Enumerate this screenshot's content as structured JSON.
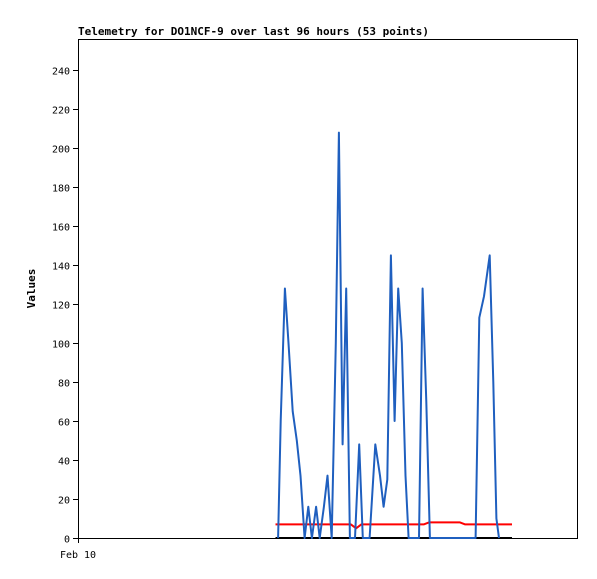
{
  "chart_data": {
    "type": "line",
    "title": "Telemetry for DO1NCF-9 over last 96 hours (53 points)",
    "ylabel": "Values",
    "xlabel": "",
    "x_tick_labels": [
      "Feb 10"
    ],
    "y_ticks": [
      0,
      20,
      40,
      60,
      80,
      100,
      120,
      140,
      160,
      180,
      200,
      220,
      240
    ],
    "ylim": [
      0,
      256
    ],
    "xlim": [
      0,
      96
    ],
    "grid": false,
    "legend": "none",
    "x_unit": "hours",
    "series": [
      {
        "color": "#1f5fbf",
        "points": [
          [
            38.5,
            0
          ],
          [
            39.0,
            60
          ],
          [
            39.8,
            128
          ],
          [
            40.5,
            100
          ],
          [
            41.3,
            65
          ],
          [
            42.1,
            50
          ],
          [
            42.8,
            32
          ],
          [
            43.6,
            0
          ],
          [
            44.3,
            16
          ],
          [
            45.0,
            0
          ],
          [
            45.8,
            16
          ],
          [
            46.5,
            0
          ],
          [
            47.3,
            16
          ],
          [
            48.0,
            32
          ],
          [
            48.8,
            0
          ],
          [
            49.6,
            100
          ],
          [
            50.2,
            208
          ],
          [
            50.9,
            48
          ],
          [
            51.6,
            128
          ],
          [
            52.3,
            0
          ],
          [
            53.3,
            0
          ],
          [
            54.1,
            48
          ],
          [
            54.8,
            0
          ],
          [
            56.1,
            0
          ],
          [
            57.2,
            48
          ],
          [
            58.1,
            32
          ],
          [
            58.8,
            16
          ],
          [
            59.5,
            30
          ],
          [
            60.2,
            145
          ],
          [
            60.9,
            60
          ],
          [
            61.6,
            128
          ],
          [
            62.3,
            100
          ],
          [
            63.0,
            32
          ],
          [
            63.6,
            0
          ],
          [
            65.6,
            0
          ],
          [
            66.3,
            128
          ],
          [
            67.0,
            70
          ],
          [
            67.7,
            0
          ],
          [
            76.5,
            0
          ],
          [
            77.2,
            113
          ],
          [
            78.1,
            124
          ],
          [
            79.2,
            145
          ],
          [
            79.9,
            80
          ],
          [
            80.5,
            10
          ],
          [
            81.0,
            0
          ]
        ]
      },
      {
        "color": "#ff0000",
        "points": [
          [
            38.0,
            7
          ],
          [
            52.5,
            7
          ],
          [
            53.5,
            5
          ],
          [
            54.5,
            7
          ],
          [
            66.5,
            7
          ],
          [
            67.5,
            8
          ],
          [
            73.5,
            8
          ],
          [
            74.5,
            7
          ],
          [
            83.5,
            7
          ]
        ]
      },
      {
        "color": "#000000",
        "points": [
          [
            38.0,
            0
          ],
          [
            83.5,
            0
          ]
        ]
      }
    ]
  }
}
